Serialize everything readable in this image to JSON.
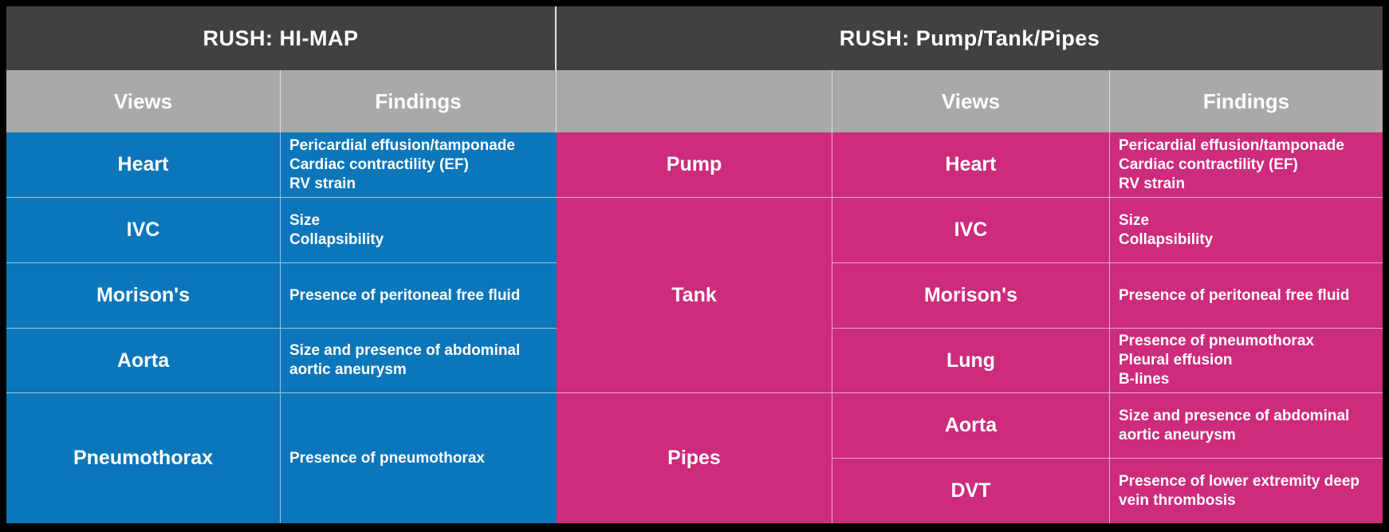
{
  "theme": {
    "page_bg": "#000000",
    "header_dark": "#414141",
    "subheader_gray": "#a9a9a9",
    "himap_blue": "#0b76b9",
    "ptp_pink": "#cd2b7c",
    "grid_line": "rgba(255,255,255,0.6)",
    "text": "#ffffff"
  },
  "left_table": {
    "title": "RUSH: HI-MAP",
    "headers": {
      "views": "Views",
      "findings": "Findings"
    },
    "rows": [
      {
        "view": "Heart",
        "findings": "Pericardial effusion/tamponade\nCardiac contractility (EF)\nRV strain"
      },
      {
        "view": "IVC",
        "findings": "Size\nCollapsibility"
      },
      {
        "view": "Morison's",
        "findings": "Presence of peritoneal free fluid"
      },
      {
        "view": "Aorta",
        "findings": "Size and presence of abdominal\naortic aneurysm"
      },
      {
        "view": "Pneumothorax",
        "findings": "Presence of pneumothorax"
      }
    ]
  },
  "right_table": {
    "title": "RUSH: Pump/Tank/Pipes",
    "headers": {
      "views": "Views",
      "findings": "Findings"
    },
    "groups": [
      {
        "label": "Pump",
        "rows": [
          {
            "view": "Heart",
            "findings": "Pericardial effusion/tamponade\nCardiac contractility (EF)\nRV strain"
          }
        ]
      },
      {
        "label": "Tank",
        "rows": [
          {
            "view": "IVC",
            "findings": "Size\nCollapsibility"
          },
          {
            "view": "Morison's",
            "findings": "Presence of peritoneal free fluid"
          },
          {
            "view": "Lung",
            "findings": "Presence of pneumothorax\nPleural effusion\nB-lines"
          }
        ]
      },
      {
        "label": "Pipes",
        "rows": [
          {
            "view": "Aorta",
            "findings": "Size and presence of abdominal\naortic aneurysm"
          },
          {
            "view": "DVT",
            "findings": "Presence of lower extremity deep\nvein thrombosis"
          }
        ]
      }
    ]
  }
}
